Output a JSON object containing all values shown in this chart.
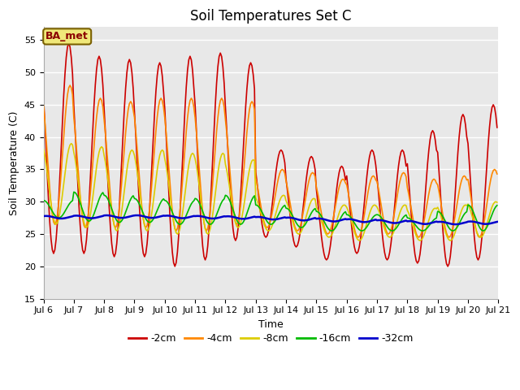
{
  "title": "Soil Temperatures Set C",
  "xlabel": "Time",
  "ylabel": "Soil Temperature (C)",
  "ylim": [
    15,
    57
  ],
  "label_text": "BA_met",
  "series": {
    "-2cm": {
      "color": "#cc0000",
      "linewidth": 1.2
    },
    "-4cm": {
      "color": "#ff8800",
      "linewidth": 1.2
    },
    "-8cm": {
      "color": "#ddcc00",
      "linewidth": 1.2
    },
    "-16cm": {
      "color": "#00bb00",
      "linewidth": 1.2
    },
    "-32cm": {
      "color": "#0000cc",
      "linewidth": 1.8
    }
  },
  "xtick_labels": [
    "Jul 6",
    "Jul 7",
    "Jul 8",
    "Jul 9",
    "Jul 10",
    "Jul 11",
    "Jul 12",
    "Jul 13",
    "Jul 14",
    "Jul 15",
    "Jul 16",
    "Jul 17",
    "Jul 18",
    "Jul 19",
    "Jul 20",
    "Jul 21"
  ],
  "background_color": "#e8e8e8",
  "title_fontsize": 12,
  "axis_label_fontsize": 9,
  "tick_fontsize": 8,
  "legend_fontsize": 9,
  "yticks": [
    15,
    20,
    25,
    30,
    35,
    40,
    45,
    50,
    55
  ],
  "peaks_2cm": [
    54.5,
    52.5,
    52.0,
    51.5,
    52.5,
    53.0,
    51.5,
    38.0,
    37.0,
    35.5,
    38.0,
    38.0,
    41.0,
    43.5,
    45.0
  ],
  "mins_2cm": [
    22.0,
    22.0,
    21.5,
    21.5,
    20.0,
    21.0,
    24.0,
    24.5,
    23.0,
    21.0,
    22.0,
    21.0,
    20.5,
    20.0,
    21.0
  ],
  "peaks_4cm": [
    48.0,
    46.0,
    45.5,
    46.0,
    46.0,
    46.0,
    45.5,
    35.0,
    34.5,
    33.5,
    34.0,
    34.5,
    33.5,
    34.0,
    35.0
  ],
  "mins_4cm": [
    26.5,
    26.0,
    26.0,
    26.0,
    25.5,
    25.5,
    26.5,
    26.0,
    25.5,
    25.0,
    24.5,
    25.0,
    24.5,
    24.5,
    24.5
  ],
  "peaks_8cm": [
    39.0,
    38.5,
    38.0,
    38.0,
    37.5,
    37.5,
    36.5,
    31.0,
    30.5,
    29.5,
    29.5,
    29.5,
    29.0,
    29.5,
    30.0
  ],
  "mins_8cm": [
    26.5,
    26.0,
    25.5,
    25.5,
    25.0,
    25.0,
    26.0,
    25.5,
    25.0,
    24.5,
    24.0,
    24.5,
    24.0,
    24.0,
    24.5
  ],
  "peaks_16cm": [
    30.2,
    31.5,
    31.0,
    30.5,
    30.2,
    30.5,
    31.0,
    29.5,
    29.0,
    28.5,
    28.0,
    28.0,
    27.5,
    28.5,
    29.5
  ],
  "mins_16cm": [
    27.5,
    27.0,
    26.8,
    26.8,
    26.5,
    26.5,
    26.5,
    26.5,
    26.0,
    25.5,
    25.5,
    25.5,
    25.5,
    25.5,
    25.5
  ],
  "peaks_32cm": [
    27.8,
    27.85,
    27.9,
    27.9,
    27.85,
    27.8,
    27.75,
    27.65,
    27.55,
    27.4,
    27.3,
    27.15,
    27.0,
    26.9,
    26.95
  ],
  "mins_32cm": [
    27.4,
    27.45,
    27.5,
    27.5,
    27.45,
    27.4,
    27.35,
    27.25,
    27.1,
    26.95,
    26.85,
    26.7,
    26.55,
    26.5,
    26.55
  ],
  "peak_hours": [
    14,
    15,
    16,
    18,
    20
  ],
  "figsize": [
    6.4,
    4.8
  ],
  "dpi": 100
}
